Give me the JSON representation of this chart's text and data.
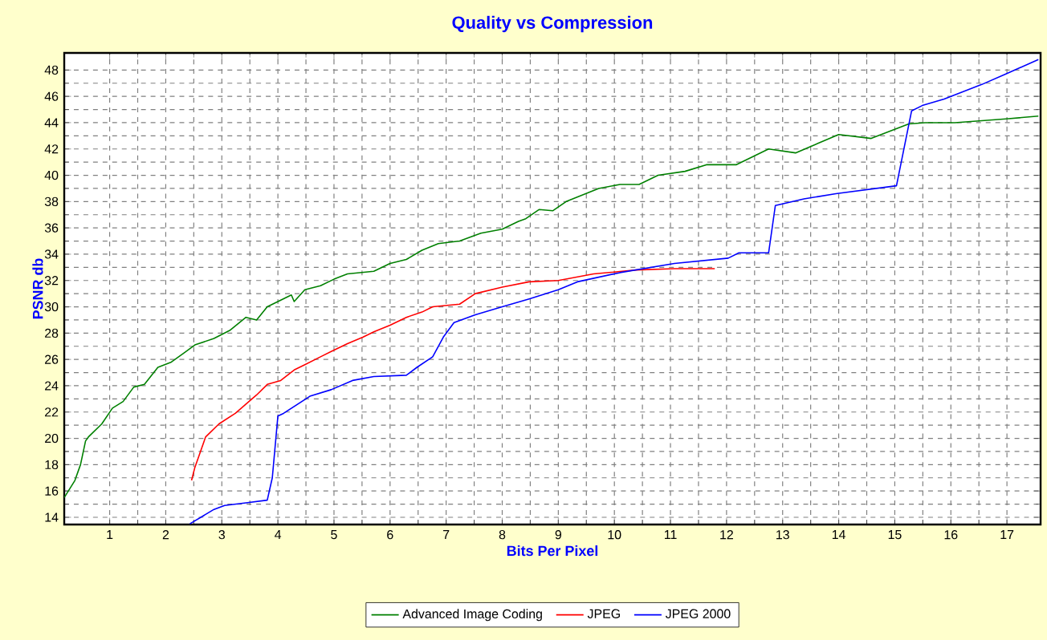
{
  "chart_data": {
    "type": "line",
    "title": "Quality vs Compression",
    "xlabel": "Bits Per Pixel",
    "ylabel": "PSNR db",
    "xlim": [
      0.19,
      17.6
    ],
    "ylim": [
      13.45,
      49.3
    ],
    "xticks": [
      1,
      2,
      3,
      4,
      5,
      6,
      7,
      8,
      9,
      10,
      11,
      12,
      13,
      14,
      15,
      16,
      17
    ],
    "yticks": [
      14,
      16,
      18,
      20,
      22,
      24,
      26,
      28,
      30,
      32,
      34,
      36,
      38,
      40,
      42,
      44,
      46,
      48
    ],
    "grid": true,
    "legend": "bottom",
    "marker": "none",
    "line_style": "solid",
    "series": [
      {
        "name": "Advanced Image Coding",
        "color": "#008000",
        "x": [
          0.19,
          0.38,
          0.48,
          0.57,
          0.62,
          0.86,
          1.05,
          1.24,
          1.43,
          1.62,
          1.86,
          2.1,
          2.33,
          2.52,
          2.86,
          3.14,
          3.43,
          3.62,
          3.81,
          4.0,
          4.24,
          4.29,
          4.48,
          4.76,
          5.0,
          5.24,
          5.71,
          6.0,
          6.29,
          6.57,
          6.86,
          7.24,
          7.62,
          8.0,
          8.29,
          8.42,
          8.66,
          8.9,
          9.14,
          9.72,
          10.1,
          10.44,
          10.78,
          11.26,
          11.64,
          12.17,
          12.75,
          13.23,
          14.0,
          14.58,
          15.25,
          15.54,
          16.07,
          17.03,
          17.56
        ],
        "values": [
          15.5,
          16.8,
          18.0,
          19.8,
          20.1,
          21.1,
          22.3,
          22.8,
          23.9,
          24.1,
          25.4,
          25.8,
          26.5,
          27.1,
          27.6,
          28.2,
          29.2,
          29.0,
          30.0,
          30.4,
          30.9,
          30.4,
          31.3,
          31.6,
          32.1,
          32.5,
          32.7,
          33.3,
          33.6,
          34.3,
          34.8,
          35.0,
          35.6,
          35.9,
          36.5,
          36.7,
          37.4,
          37.3,
          38.0,
          39.0,
          39.3,
          39.3,
          40.0,
          40.3,
          40.8,
          40.8,
          42.0,
          41.7,
          43.1,
          42.8,
          43.9,
          44.0,
          44.0,
          44.3,
          44.5
        ]
      },
      {
        "name": "JPEG",
        "color": "#ff0000",
        "x": [
          2.46,
          2.52,
          2.71,
          2.95,
          3.24,
          3.43,
          3.62,
          3.81,
          4.05,
          4.29,
          4.48,
          4.76,
          4.95,
          5.24,
          5.52,
          5.71,
          6.0,
          6.29,
          6.57,
          6.76,
          7.24,
          7.52,
          8.0,
          8.48,
          9.0,
          9.63,
          10.39,
          11.07,
          11.79
        ],
        "values": [
          16.8,
          17.8,
          20.1,
          21.1,
          21.9,
          22.6,
          23.3,
          24.1,
          24.4,
          25.2,
          25.6,
          26.2,
          26.6,
          27.2,
          27.7,
          28.1,
          28.6,
          29.2,
          29.6,
          30.0,
          30.2,
          31.0,
          31.5,
          31.9,
          32.0,
          32.5,
          32.8,
          32.9,
          32.9
        ]
      },
      {
        "name": "JPEG 2000",
        "color": "#0000ff",
        "x": [
          2.43,
          2.86,
          3.05,
          3.43,
          3.81,
          3.9,
          4.0,
          4.1,
          4.57,
          4.95,
          5.33,
          5.71,
          6.29,
          6.48,
          6.76,
          6.95,
          7.14,
          7.52,
          8.0,
          8.48,
          9.0,
          9.34,
          10.1,
          11.07,
          12.03,
          12.22,
          12.75,
          12.87,
          13.38,
          13.95,
          15.03,
          15.3,
          15.49,
          15.88,
          16.55,
          16.98,
          17.56
        ],
        "values": [
          13.5,
          14.6,
          14.9,
          15.1,
          15.3,
          17.0,
          21.7,
          21.9,
          23.2,
          23.7,
          24.4,
          24.7,
          24.8,
          25.4,
          26.2,
          27.7,
          28.8,
          29.4,
          30.0,
          30.6,
          31.3,
          31.9,
          32.6,
          33.3,
          33.7,
          34.1,
          34.1,
          37.7,
          38.2,
          38.6,
          39.2,
          44.9,
          45.3,
          45.8,
          46.9,
          47.7,
          48.8
        ]
      }
    ]
  }
}
